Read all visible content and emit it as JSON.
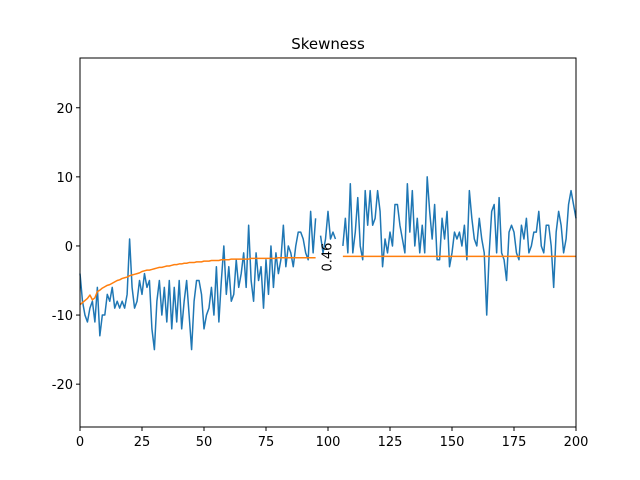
{
  "chart_data": {
    "type": "line",
    "title": "Skewness",
    "x": [
      0,
      1,
      2,
      3,
      4,
      5,
      6,
      7,
      8,
      9,
      10,
      11,
      12,
      13,
      14,
      15,
      16,
      17,
      18,
      19,
      20,
      21,
      22,
      23,
      24,
      25,
      26,
      27,
      28,
      29,
      30,
      31,
      32,
      33,
      34,
      35,
      36,
      37,
      38,
      39,
      40,
      41,
      42,
      43,
      44,
      45,
      46,
      47,
      48,
      49,
      50,
      51,
      52,
      53,
      54,
      55,
      56,
      57,
      58,
      59,
      60,
      61,
      62,
      63,
      64,
      65,
      66,
      67,
      68,
      69,
      70,
      71,
      72,
      73,
      74,
      75,
      76,
      77,
      78,
      79,
      80,
      81,
      82,
      83,
      84,
      85,
      86,
      87,
      88,
      89,
      90,
      91,
      92,
      93,
      94,
      95,
      96,
      97,
      98,
      99,
      100,
      101,
      102,
      103,
      104,
      105,
      106,
      107,
      108,
      109,
      110,
      111,
      112,
      113,
      114,
      115,
      116,
      117,
      118,
      119,
      120,
      121,
      122,
      123,
      124,
      125,
      126,
      127,
      128,
      129,
      130,
      131,
      132,
      133,
      134,
      135,
      136,
      137,
      138,
      139,
      140,
      141,
      142,
      143,
      144,
      145,
      146,
      147,
      148,
      149,
      150,
      151,
      152,
      153,
      154,
      155,
      156,
      157,
      158,
      159,
      160,
      161,
      162,
      163,
      164,
      165,
      166,
      167,
      168,
      169,
      170,
      171,
      172,
      173,
      174,
      175,
      176,
      177,
      178,
      179,
      180,
      181,
      182,
      183,
      184,
      185,
      186,
      187,
      188,
      189,
      190,
      191,
      192,
      193,
      194,
      195,
      196,
      197,
      198,
      199,
      200
    ],
    "series": [
      {
        "color": "#1f77b4",
        "values": [
          -4,
          -8,
          -10,
          -11,
          -9,
          -8,
          -11,
          -6,
          -13,
          -10,
          -10,
          -7,
          -8,
          -6,
          -9,
          -8,
          -9,
          -8,
          -9,
          -7,
          1,
          -6,
          -9,
          -8,
          -5,
          -7,
          -4,
          -6,
          -5,
          -12,
          -15,
          -8,
          -5,
          -10,
          -6,
          -11,
          -5,
          -12,
          -6,
          -11,
          -5,
          -12,
          -8,
          -5,
          -10,
          -15,
          -8,
          -5,
          -5,
          -7,
          -12,
          -10,
          -9,
          -6,
          -10,
          -3,
          -11,
          -5,
          0,
          -7,
          -3,
          -8,
          -7,
          -2,
          -6,
          -4,
          -1,
          -6,
          3,
          -5,
          -8,
          -1,
          -5,
          -3,
          -9,
          -2,
          -7,
          0,
          -6,
          -1,
          -4,
          -2,
          3,
          -3,
          0,
          -1,
          -3,
          0,
          2,
          2,
          1,
          -1,
          -2,
          5,
          -1,
          4,
          null,
          1.5,
          -1,
          1,
          5,
          1,
          2,
          1,
          null,
          null,
          0,
          4,
          -1,
          9,
          -1,
          2,
          7,
          0,
          -2,
          8,
          3,
          8,
          3,
          4,
          8,
          5,
          -3,
          1,
          -1,
          2,
          0,
          6,
          6,
          3,
          1,
          -1,
          9,
          2,
          8,
          0,
          4,
          -1,
          3,
          -1,
          10,
          5,
          1,
          6,
          -2,
          -2,
          4,
          1,
          5,
          -3,
          -1,
          2,
          1,
          2,
          0,
          3,
          -2,
          8,
          4,
          1,
          0,
          4,
          1,
          -1,
          -10,
          -1,
          5,
          6,
          -1,
          7,
          -1,
          -2,
          -5,
          2,
          3,
          2,
          -1,
          -2,
          3,
          1,
          4,
          -1,
          0,
          2,
          2,
          5,
          0,
          -1,
          3,
          3,
          0,
          -6,
          2,
          5,
          3,
          -1,
          1,
          6,
          8,
          6,
          4
        ]
      },
      {
        "color": "#ff7f0e",
        "values": [
          -8.5,
          -8.2,
          -7.9,
          -7.6,
          -7.1,
          -7.8,
          -7.5,
          -6.6,
          -6.4,
          -6.1,
          -5.9,
          -5.7,
          -5.6,
          -5.4,
          -5.2,
          -5.0,
          -4.9,
          -4.7,
          -4.6,
          -4.5,
          -4.3,
          -4.2,
          -4.1,
          -4.0,
          -3.9,
          -3.7,
          -3.6,
          -3.5,
          -3.5,
          -3.4,
          -3.3,
          -3.2,
          -3.1,
          -3.1,
          -3.0,
          -2.9,
          -2.9,
          -2.8,
          -2.7,
          -2.7,
          -2.6,
          -2.6,
          -2.5,
          -2.5,
          -2.4,
          -2.4,
          -2.4,
          -2.3,
          -2.3,
          -2.3,
          -2.2,
          -2.2,
          -2.2,
          -2.1,
          -2.1,
          -2.1,
          -2.1,
          -2.0,
          -2.0,
          -2.0,
          -2.0,
          -1.9,
          -1.9,
          -1.9,
          -1.9,
          -1.9,
          -1.9,
          -1.9,
          -1.9,
          -1.8,
          -1.8,
          -1.8,
          -1.8,
          -1.8,
          -1.8,
          -1.8,
          -1.8,
          -1.8,
          -1.8,
          -1.8,
          -1.7,
          -1.7,
          -1.7,
          -1.7,
          -1.7,
          -1.7,
          -1.7,
          -1.7,
          -1.7,
          -1.7,
          -1.7,
          -1.7,
          -1.7,
          -1.7,
          -1.7,
          -1.7,
          null,
          null,
          null,
          null,
          null,
          null,
          null,
          null,
          null,
          null,
          -1.5,
          -1.5,
          -1.5,
          -1.5,
          -1.5,
          -1.5,
          -1.5,
          -1.5,
          -1.5,
          -1.5,
          -1.5,
          -1.5,
          -1.5,
          -1.5,
          -1.5,
          -1.5,
          -1.5,
          -1.5,
          -1.5,
          -1.5,
          -1.5,
          -1.5,
          -1.5,
          -1.5,
          -1.5,
          -1.5,
          -1.5,
          -1.5,
          -1.5,
          -1.5,
          -1.5,
          -1.5,
          -1.5,
          -1.5,
          -1.5,
          -1.5,
          -1.5,
          -1.5,
          -1.5,
          -1.5,
          -1.5,
          -1.5,
          -1.5,
          -1.5,
          -1.5,
          -1.5,
          -1.5,
          -1.5,
          -1.5,
          -1.5,
          -1.5,
          -1.5,
          -1.5,
          -1.5,
          -1.5,
          -1.5,
          -1.5,
          -1.5,
          -1.5,
          -1.5,
          -1.5,
          -1.5,
          -1.5,
          -1.5,
          -1.5,
          -1.5,
          -1.5,
          -1.5,
          -1.5,
          -1.5,
          -1.5,
          -1.5,
          -1.5,
          -1.5,
          -1.5,
          -1.5,
          -1.5,
          -1.5,
          -1.5,
          -1.5,
          -1.5,
          -1.5,
          -1.5,
          -1.5,
          -1.5,
          -1.5,
          -1.5,
          -1.5,
          -1.5,
          -1.5,
          -1.5,
          -1.5,
          -1.5,
          -1.5,
          -1.5
        ]
      }
    ],
    "annotations": [
      {
        "text": "0.46",
        "x": 100,
        "y": -1.6,
        "rotation": 90
      }
    ],
    "xlim": [
      0,
      200
    ],
    "xticks": [
      0,
      25,
      50,
      75,
      100,
      125,
      150,
      175,
      200
    ],
    "ylim": [
      -26.2,
      27.2
    ],
    "yticks": [
      -20,
      -10,
      0,
      10,
      20
    ],
    "grid": false
  }
}
